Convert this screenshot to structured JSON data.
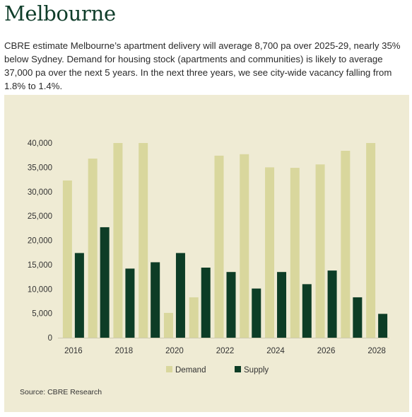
{
  "header": {
    "title": "Melbourne",
    "intro": "CBRE estimate Melbourne’s apartment delivery will average 8,700 pa over 2025-29, nearly 35% below Sydney.  Demand for housing stock (apartments and communities) is likely to average 37,000 pa over the next 5 years. In the next three years, we see city-wide vacancy falling from 1.8% to 1.4%."
  },
  "colors": {
    "panel_bg": "#efebd4",
    "demand": "#d9d79d",
    "supply": "#0d3d26",
    "title": "#0f3d2a"
  },
  "chart_data": {
    "type": "bar",
    "categories": [
      "2016",
      "2017",
      "2018",
      "2019",
      "2020",
      "2021",
      "2022",
      "2023",
      "2024",
      "2025",
      "2026",
      "2027",
      "2028"
    ],
    "x_tick_labels": [
      "2016",
      "2018",
      "2020",
      "2022",
      "2024",
      "2026",
      "2028"
    ],
    "y_tick_labels": [
      "0",
      "5,000",
      "10,000",
      "15,000",
      "20,000",
      "25,000",
      "30,000",
      "35,000",
      "40,000"
    ],
    "ylim": [
      0,
      40000
    ],
    "grid": false,
    "legend_position": "bottom",
    "series": [
      {
        "name": "Demand",
        "color": "#d9d79d",
        "values": [
          32300,
          36800,
          40000,
          40000,
          5100,
          8300,
          37400,
          37700,
          35000,
          34900,
          35600,
          38400,
          40000
        ]
      },
      {
        "name": "Supply",
        "color": "#0d3d26",
        "values": [
          17400,
          22700,
          14200,
          15500,
          17400,
          14400,
          13500,
          10100,
          13500,
          11000,
          13800,
          8300,
          4900
        ]
      }
    ],
    "source": "Source: CBRE Research"
  }
}
